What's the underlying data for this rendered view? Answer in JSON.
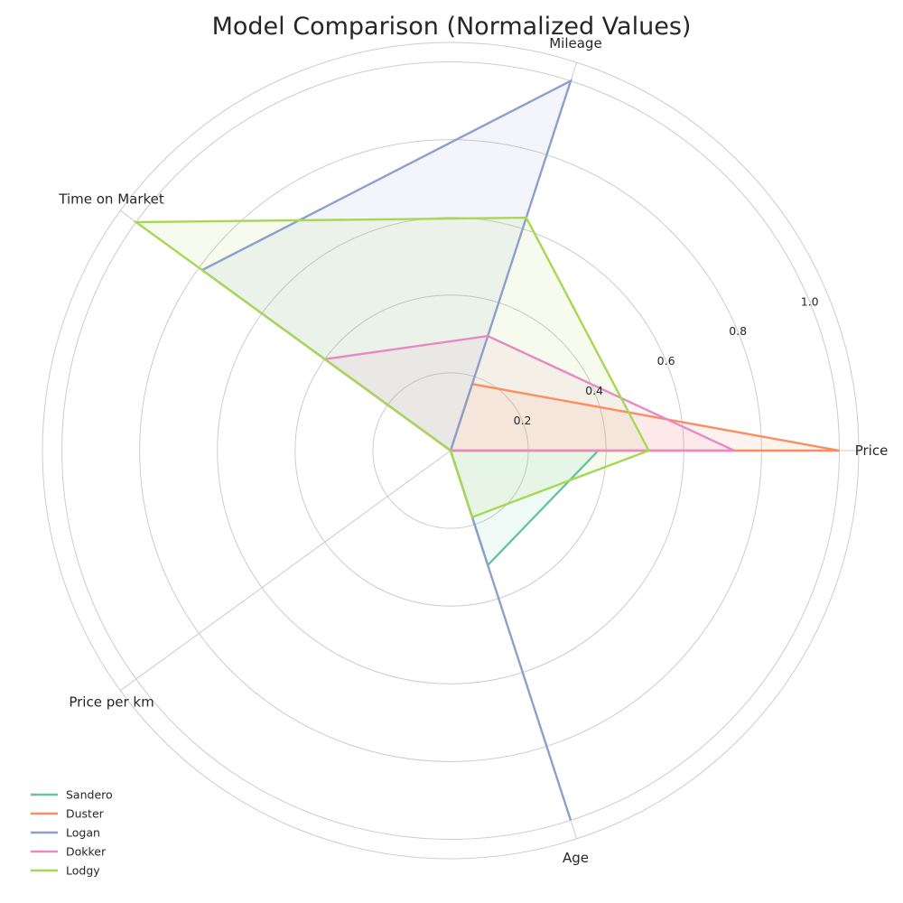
{
  "chart_data": {
    "type": "radar",
    "title": "Model Comparison (Normalized Values)",
    "axes": [
      "Price",
      "Mileage",
      "Time on Market",
      "Price per km",
      "Age"
    ],
    "radial_ticks": [
      "0.2",
      "0.4",
      "0.6",
      "0.8",
      "1.0"
    ],
    "radial_tick_values": [
      0.2,
      0.4,
      0.6,
      0.8,
      1.0
    ],
    "rlim": [
      0,
      1.05
    ],
    "grid": true,
    "legend_position": "lower-left",
    "series": [
      {
        "name": "Sandero",
        "color": "#66c2a5",
        "values": [
          0.38,
          0.0,
          0.0,
          0.0,
          0.31
        ]
      },
      {
        "name": "Duster",
        "color": "#fc8d62",
        "values": [
          1.0,
          0.18,
          0.0,
          0.0,
          0.0
        ]
      },
      {
        "name": "Logan",
        "color": "#8da0cb",
        "values": [
          0.0,
          1.0,
          0.79,
          0.0,
          1.0
        ]
      },
      {
        "name": "Dokker",
        "color": "#e78ac3",
        "values": [
          0.73,
          0.31,
          0.4,
          0.0,
          0.0
        ]
      },
      {
        "name": "Lodgy",
        "color": "#a6d854",
        "values": [
          0.51,
          0.63,
          1.0,
          0.0,
          0.18
        ]
      }
    ]
  }
}
